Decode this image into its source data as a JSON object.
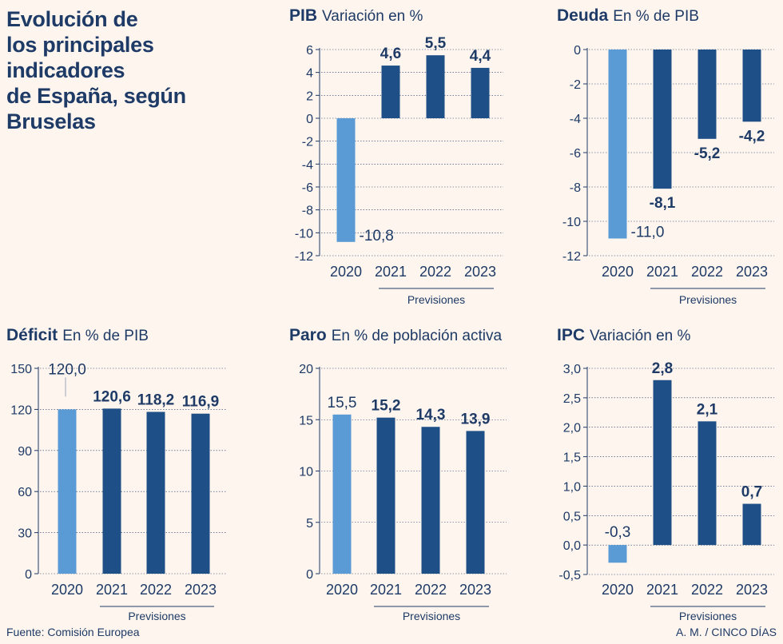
{
  "header": {
    "title_lines": [
      "Evolución de",
      "los principales indicadores",
      "de España, según Bruselas"
    ]
  },
  "footer": {
    "source": "Fuente: Comisión Europea",
    "credit": "A. M. / CINCO DÍAS"
  },
  "colors": {
    "actual_bar": "#5b9bd5",
    "forecast_bar": "#1f4f87",
    "text": "#1e3a66",
    "background": "#fdf5ee",
    "grid": "#1e3a66"
  },
  "chart_data": [
    {
      "id": "pib",
      "type": "bar",
      "title": "PIB",
      "subtitle": "Variación en %",
      "categories": [
        "2020",
        "2021",
        "2022",
        "2023"
      ],
      "values": [
        -10.8,
        4.6,
        5.5,
        4.4
      ],
      "value_labels": [
        "-10,8",
        "4,6",
        "5,5",
        "4,4"
      ],
      "ylim": [
        -12,
        6
      ],
      "yticks": [
        6,
        4,
        2,
        0,
        -2,
        -4,
        -6,
        -8,
        -10,
        -12
      ],
      "ytick_labels": [
        "6",
        "4",
        "2",
        "0",
        "-2",
        "-4",
        "-6",
        "-8",
        "-10",
        "-12"
      ],
      "forecast_label": "Previsiones",
      "forecast_from_index": 1
    },
    {
      "id": "deuda",
      "type": "bar",
      "title": "Deuda",
      "subtitle": "En % de PIB",
      "categories": [
        "2020",
        "2021",
        "2022",
        "2023"
      ],
      "values": [
        -11.0,
        -8.1,
        -5.2,
        -4.2
      ],
      "value_labels": [
        "-11,0",
        "-8,1",
        "-5,2",
        "-4,2"
      ],
      "ylim": [
        -12,
        0
      ],
      "yticks": [
        0,
        -2,
        -4,
        -6,
        -8,
        -10,
        -12
      ],
      "ytick_labels": [
        "0",
        "-2",
        "-4",
        "-6",
        "-8",
        "-10",
        "-12"
      ],
      "forecast_label": "Previsiones",
      "forecast_from_index": 1
    },
    {
      "id": "deficit",
      "type": "bar",
      "title": "Déficit",
      "subtitle": "En % de PIB",
      "categories": [
        "2020",
        "2021",
        "2022",
        "2023"
      ],
      "values": [
        120.0,
        120.6,
        118.2,
        116.9
      ],
      "value_labels": [
        "120,0",
        "120,6",
        "118,2",
        "116,9"
      ],
      "ylim": [
        0,
        150
      ],
      "yticks": [
        150,
        120,
        90,
        60,
        30,
        0
      ],
      "ytick_labels": [
        "150",
        "120",
        "90",
        "60",
        "30",
        "0"
      ],
      "forecast_label": "Previsiones",
      "forecast_from_index": 1
    },
    {
      "id": "paro",
      "type": "bar",
      "title": "Paro",
      "subtitle": "En % de población activa",
      "categories": [
        "2020",
        "2021",
        "2022",
        "2023"
      ],
      "values": [
        15.5,
        15.2,
        14.3,
        13.9
      ],
      "value_labels": [
        "15,5",
        "15,2",
        "14,3",
        "13,9"
      ],
      "ylim": [
        0,
        20
      ],
      "yticks": [
        20,
        15,
        10,
        5,
        0
      ],
      "ytick_labels": [
        "20",
        "15",
        "10",
        "5",
        "0"
      ],
      "forecast_label": "Previsiones",
      "forecast_from_index": 1
    },
    {
      "id": "ipc",
      "type": "bar",
      "title": "IPC",
      "subtitle": "Variación en %",
      "categories": [
        "2020",
        "2021",
        "2022",
        "2023"
      ],
      "values": [
        -0.3,
        2.8,
        2.1,
        0.7
      ],
      "value_labels": [
        "-0,3",
        "2,8",
        "2,1",
        "0,7"
      ],
      "ylim": [
        -0.5,
        3.0
      ],
      "yticks": [
        3.0,
        2.5,
        2.0,
        1.5,
        1.0,
        0.5,
        0.0,
        -0.5
      ],
      "ytick_labels": [
        "3,0",
        "2,5",
        "2,0",
        "1,5",
        "1,0",
        "0,5",
        "0,0",
        "-0,5"
      ],
      "forecast_label": "Previsiones",
      "forecast_from_index": 1
    }
  ]
}
